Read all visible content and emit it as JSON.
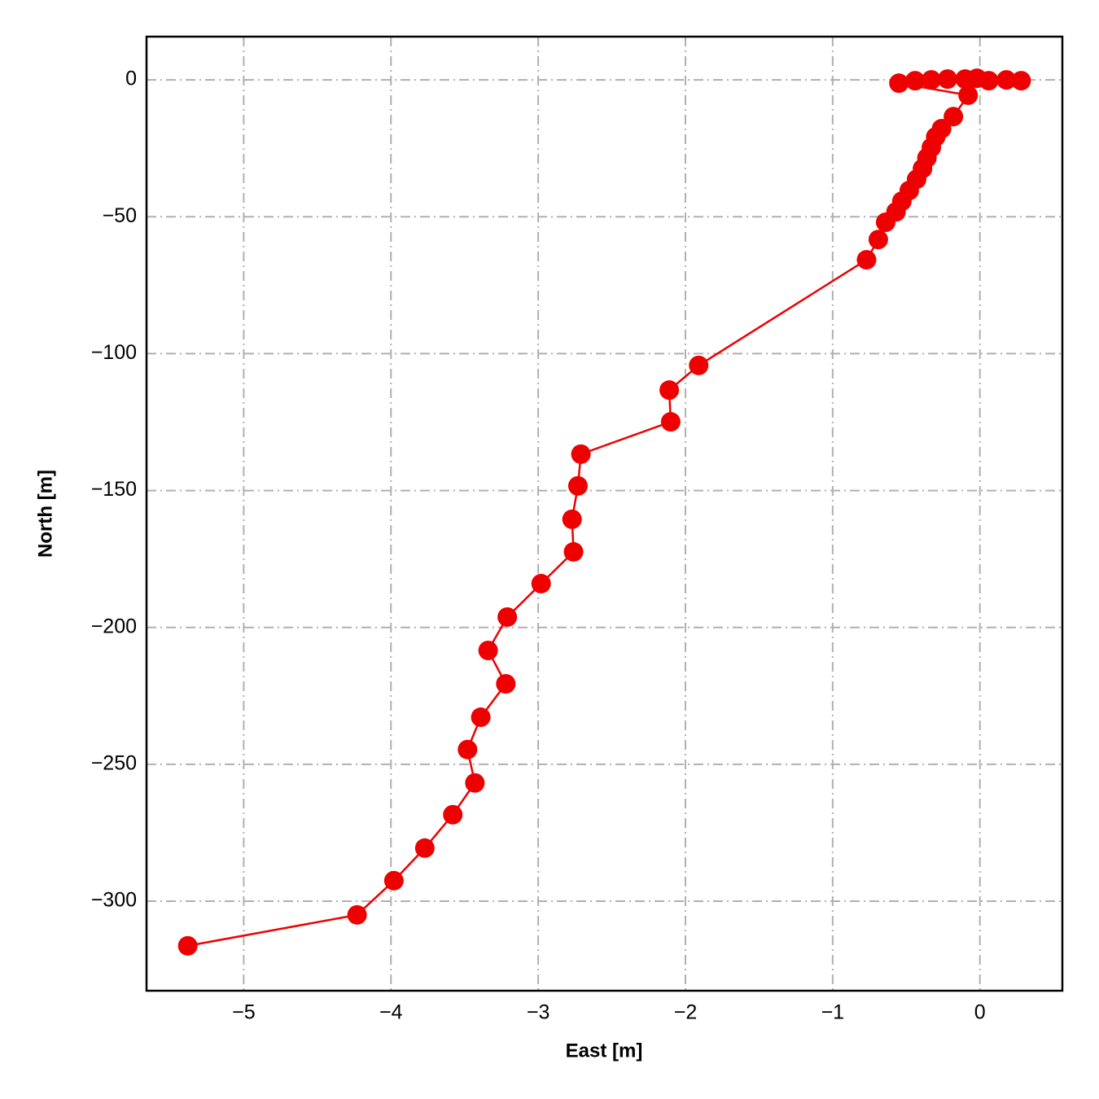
{
  "chart_data": {
    "type": "line",
    "xlabel": "East [m]",
    "ylabel": "North [m]",
    "x": [
      0.28,
      0.18,
      0.06,
      -0.02,
      -0.1,
      -0.22,
      -0.33,
      -0.44,
      -0.55,
      -0.08,
      -0.18,
      -0.26,
      -0.3,
      -0.33,
      -0.36,
      -0.39,
      -0.43,
      -0.48,
      -0.53,
      -0.57,
      -0.64,
      -0.69,
      -0.77,
      -1.91,
      -2.11,
      -2.1,
      -2.71,
      -2.73,
      -2.77,
      -2.76,
      -2.98,
      -3.21,
      -3.34,
      -3.22,
      -3.39,
      -3.48,
      -3.43,
      -3.58,
      -3.77,
      -3.98,
      -4.23,
      -5.38
    ],
    "values": [
      -0.3,
      0.0,
      -0.3,
      0.6,
      0.3,
      0.3,
      0.0,
      -0.3,
      -1.2,
      -5.6,
      -13.4,
      -17.8,
      -20.8,
      -24.7,
      -28.5,
      -32.4,
      -36.3,
      -40.4,
      -44.3,
      -48.2,
      -52.0,
      -58.3,
      -65.7,
      -104.3,
      -113.3,
      -124.9,
      -136.7,
      -148.3,
      -160.5,
      -172.4,
      -184.0,
      -196.2,
      -208.4,
      -220.6,
      -232.8,
      -244.6,
      -256.8,
      -268.4,
      -280.6,
      -292.5,
      -305.0,
      -316.3
    ],
    "color": "#ee0000",
    "xlim": [
      -5.66,
      0.56
    ],
    "xticks": [
      {
        "value": -5,
        "label": "−5"
      },
      {
        "value": -4,
        "label": "−4"
      },
      {
        "value": -3,
        "label": "−3"
      },
      {
        "value": -2,
        "label": "−2"
      },
      {
        "value": -1,
        "label": "−1"
      },
      0
    ],
    "ylim": [
      -332.7,
      15.8
    ],
    "yticks": [
      0,
      {
        "value": -50,
        "label": "−50"
      },
      {
        "value": -100,
        "label": "−100"
      },
      {
        "value": -150,
        "label": "−150"
      },
      {
        "value": -200,
        "label": "−200"
      },
      {
        "value": -250,
        "label": "−250"
      },
      {
        "value": -300,
        "label": "−300"
      }
    ],
    "grid": true
  }
}
